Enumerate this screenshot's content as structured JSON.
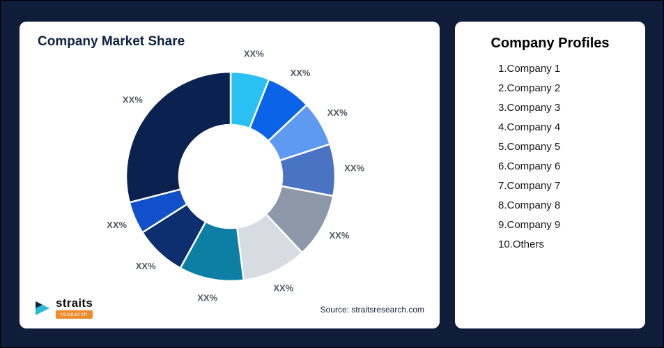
{
  "page": {
    "background_color": "#0f1d3a",
    "card_color": "#ffffff"
  },
  "left_card": {
    "title": "Company Market Share",
    "source": "Source: straitsresearch.com",
    "logo": {
      "brand": "straits",
      "sub": "research",
      "icon": "straits-arrow-icon",
      "icon_color": "#27b9d6",
      "sub_bg_color": "#ee8a2a"
    }
  },
  "right_card": {
    "title": "Company Profiles",
    "items": [
      "1.Company 1",
      "2.Company 2",
      "3.Company 3",
      "4.Company 4",
      "5.Company 5",
      "6.Company 6",
      "7.Company 7",
      "8.Company 8",
      "9.Company 9",
      "10.Others"
    ]
  },
  "chart_data": {
    "type": "pie",
    "variant": "donut",
    "title": "Company Market Share",
    "start_angle_deg": 0,
    "direction": "clockwise",
    "inner_radius_ratio": 0.49,
    "label_color": "#4e5863",
    "segments": [
      {
        "label": "XX%",
        "value": 6,
        "color": "#2bc0f4"
      },
      {
        "label": "XX%",
        "value": 7,
        "color": "#0b63e8"
      },
      {
        "label": "XX%",
        "value": 7,
        "color": "#5e9bf0"
      },
      {
        "label": "XX%",
        "value": 8,
        "color": "#4a73c2"
      },
      {
        "label": "XX%",
        "value": 10,
        "color": "#8d98a9"
      },
      {
        "label": "XX%",
        "value": 10,
        "color": "#d7dce2"
      },
      {
        "label": "XX%",
        "value": 10,
        "color": "#0d7fa5"
      },
      {
        "label": "XX%",
        "value": 8,
        "color": "#0d2f70"
      },
      {
        "label": "XX%",
        "value": 5,
        "color": "#1150c8"
      },
      {
        "label": "XX%",
        "value": 29,
        "color": "#0b2150"
      }
    ]
  }
}
